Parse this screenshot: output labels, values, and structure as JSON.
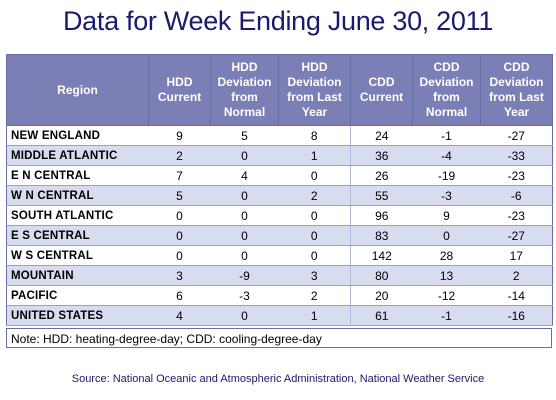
{
  "title": "Data for Week Ending June 30, 2011",
  "table": {
    "headers": [
      "Region",
      "HDD Current",
      "HDD Deviation from Normal",
      "HDD Deviation from Last Year",
      "CDD Current",
      "CDD Deviation from Normal",
      "CDD Deviation from Last Year"
    ],
    "rows": [
      [
        "NEW ENGLAND",
        "9",
        "5",
        "8",
        "24",
        "-1",
        "-27"
      ],
      [
        "MIDDLE ATLANTIC",
        "2",
        "0",
        "1",
        "36",
        "-4",
        "-33"
      ],
      [
        "E N CENTRAL",
        "7",
        "4",
        "0",
        "26",
        "-19",
        "-23"
      ],
      [
        "W N CENTRAL",
        "5",
        "0",
        "2",
        "55",
        "-3",
        "-6"
      ],
      [
        "SOUTH ATLANTIC",
        "0",
        "0",
        "0",
        "96",
        "9",
        "-23"
      ],
      [
        "E S CENTRAL",
        "0",
        "0",
        "0",
        "83",
        "0",
        "-27"
      ],
      [
        "W S CENTRAL",
        "0",
        "0",
        "0",
        "142",
        "28",
        "17"
      ],
      [
        "MOUNTAIN",
        "3",
        "-9",
        "3",
        "80",
        "13",
        "2"
      ],
      [
        "PACIFIC",
        "6",
        "-3",
        "2",
        "20",
        "-12",
        "-14"
      ],
      [
        "UNITED STATES",
        "4",
        "0",
        "1",
        "61",
        "-1",
        "-16"
      ]
    ]
  },
  "note": "Note: HDD: heating-degree-day; CDD: cooling-degree-day",
  "source": "Source:  National Oceanic and Atmospheric Administration, National Weather Service",
  "colors": {
    "title": "#1a1a6e",
    "header_bg": "#7b7fb5",
    "band_bg": "#d7dcef"
  }
}
